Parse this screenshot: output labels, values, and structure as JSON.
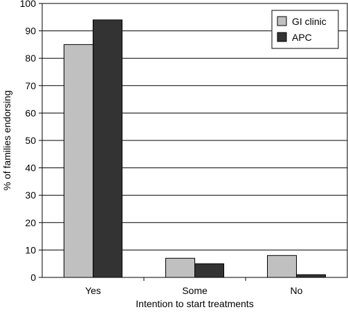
{
  "chart_data": {
    "type": "bar",
    "categories": [
      "Yes",
      "Some",
      "No"
    ],
    "series": [
      {
        "name": "GI clinic",
        "values": [
          85,
          7,
          8
        ],
        "color": "#c0c0c0"
      },
      {
        "name": "APC",
        "values": [
          94,
          5,
          1
        ],
        "color": "#333333"
      }
    ],
    "xlabel": "Intention to start treatments",
    "ylabel": "% of families endorsing",
    "ylim": [
      0,
      100
    ],
    "yticks": [
      0,
      10,
      20,
      30,
      40,
      50,
      60,
      70,
      80,
      90,
      100
    ],
    "grid": true,
    "legend": "top-right"
  }
}
